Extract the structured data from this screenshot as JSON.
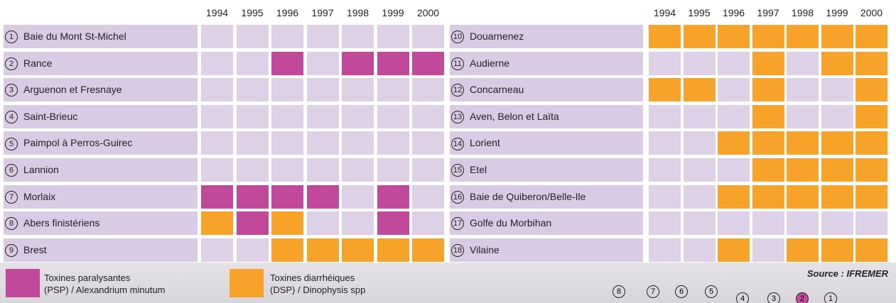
{
  "years": [
    "1994",
    "1995",
    "1996",
    "1997",
    "1998",
    "1999",
    "2000"
  ],
  "legend": [
    {
      "color": "#c2489c",
      "lines": [
        "Toxines paralysantes",
        "(PSP) / Alexandrium minutum"
      ]
    },
    {
      "color": "#f7a32a",
      "lines": [
        "Toxines diarrhéiques",
        "(DSP) / Dinophysis spp"
      ]
    }
  ],
  "source": "Source : IFREMER",
  "tables": [
    {
      "sites": [
        {
          "number": "1",
          "name": "Baie du Mont St-Michel",
          "cells": [
            null,
            null,
            null,
            null,
            null,
            null,
            null
          ]
        },
        {
          "number": "2",
          "name": "Rance",
          "cells": [
            null,
            null,
            0,
            null,
            0,
            0,
            0
          ]
        },
        {
          "number": "3",
          "name": "Arguenon et Fresnaye",
          "cells": [
            null,
            null,
            null,
            null,
            null,
            null,
            null
          ]
        },
        {
          "number": "4",
          "name": "Saint-Brieuc",
          "cells": [
            null,
            null,
            null,
            null,
            null,
            null,
            null
          ]
        },
        {
          "number": "5",
          "name": "Paimpol à Perros-Guirec",
          "cells": [
            null,
            null,
            null,
            null,
            null,
            null,
            null
          ]
        },
        {
          "number": "6",
          "name": "Lannion",
          "cells": [
            null,
            null,
            null,
            null,
            null,
            null,
            null
          ]
        },
        {
          "number": "7",
          "name": "Morlaix",
          "cells": [
            0,
            0,
            0,
            0,
            null,
            0,
            null
          ]
        },
        {
          "number": "8",
          "name": "Abers finistériens",
          "cells": [
            1,
            0,
            1,
            null,
            null,
            0,
            null
          ]
        },
        {
          "number": "9",
          "name": "Brest",
          "cells": [
            null,
            null,
            1,
            1,
            1,
            1,
            1
          ]
        }
      ]
    },
    {
      "sites": [
        {
          "number": "10",
          "name": "Douarnenez",
          "cells": [
            1,
            1,
            1,
            1,
            1,
            1,
            1
          ]
        },
        {
          "number": "11",
          "name": "Audierne",
          "cells": [
            null,
            null,
            null,
            1,
            null,
            1,
            1
          ]
        },
        {
          "number": "12",
          "name": "Concarneau",
          "cells": [
            1,
            1,
            null,
            1,
            null,
            null,
            1
          ]
        },
        {
          "number": "13",
          "name": "Aven, Belon et Laïta",
          "cells": [
            null,
            null,
            null,
            1,
            null,
            null,
            1
          ]
        },
        {
          "number": "14",
          "name": "Lorient",
          "cells": [
            null,
            null,
            1,
            1,
            1,
            1,
            1
          ]
        },
        {
          "number": "15",
          "name": "Etel",
          "cells": [
            null,
            null,
            null,
            1,
            1,
            1,
            1
          ]
        },
        {
          "number": "16",
          "name": "Baie de Quiberon/Belle-Ile",
          "cells": [
            null,
            null,
            1,
            1,
            1,
            1,
            1
          ]
        },
        {
          "number": "17",
          "name": "Golfe du Morbihan",
          "cells": [
            null,
            null,
            null,
            null,
            null,
            null,
            null
          ]
        },
        {
          "number": "18",
          "name": "Vilaine",
          "cells": [
            null,
            null,
            1,
            null,
            1,
            1,
            1
          ]
        }
      ]
    }
  ],
  "map_markers": [
    "8",
    "7",
    "6",
    "5",
    "4",
    "3",
    "2",
    "1"
  ]
}
